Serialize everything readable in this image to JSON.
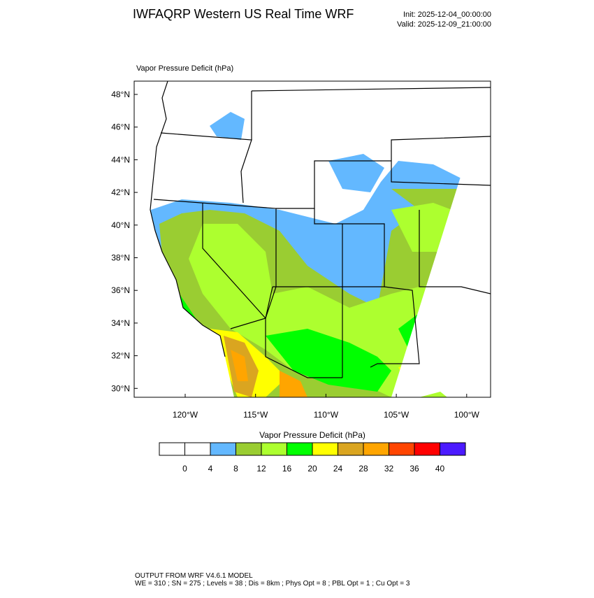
{
  "header": {
    "title": "IWFAQRP Western US Real Time WRF",
    "init": "Init: 2025-12-04_00:00:00",
    "valid": "Valid: 2025-12-09_21:00:00"
  },
  "map": {
    "subtitle": "Vapor Pressure Deficit   (hPa)",
    "lat_labels": [
      "48°N",
      "46°N",
      "44°N",
      "42°N",
      "40°N",
      "38°N",
      "36°N",
      "34°N",
      "32°N",
      "30°N"
    ],
    "lon_labels": [
      "120°W",
      "115°W",
      "110°W",
      "105°W",
      "100°W"
    ]
  },
  "colorbar": {
    "label": "Vapor Pressure Deficit  (hPa)",
    "colors": [
      "#ffffff",
      "#ffffff",
      "#63b8ff",
      "#9acd32",
      "#adff2f",
      "#00ff00",
      "#ffff00",
      "#daa520",
      "#ffa500",
      "#ff4500",
      "#ff0000",
      "#4b1aff"
    ],
    "ticks": [
      "0",
      "4",
      "8",
      "12",
      "16",
      "20",
      "24",
      "28",
      "32",
      "36",
      "40"
    ]
  },
  "footer": {
    "line1": "OUTPUT FROM WRF V4.6.1 MODEL",
    "line2": "WE = 310 ; SN = 275 ; Levels = 38 ; Dis = 8km ; Phys Opt = 8 ; PBL Opt = 1 ; Cu Opt = 3"
  }
}
